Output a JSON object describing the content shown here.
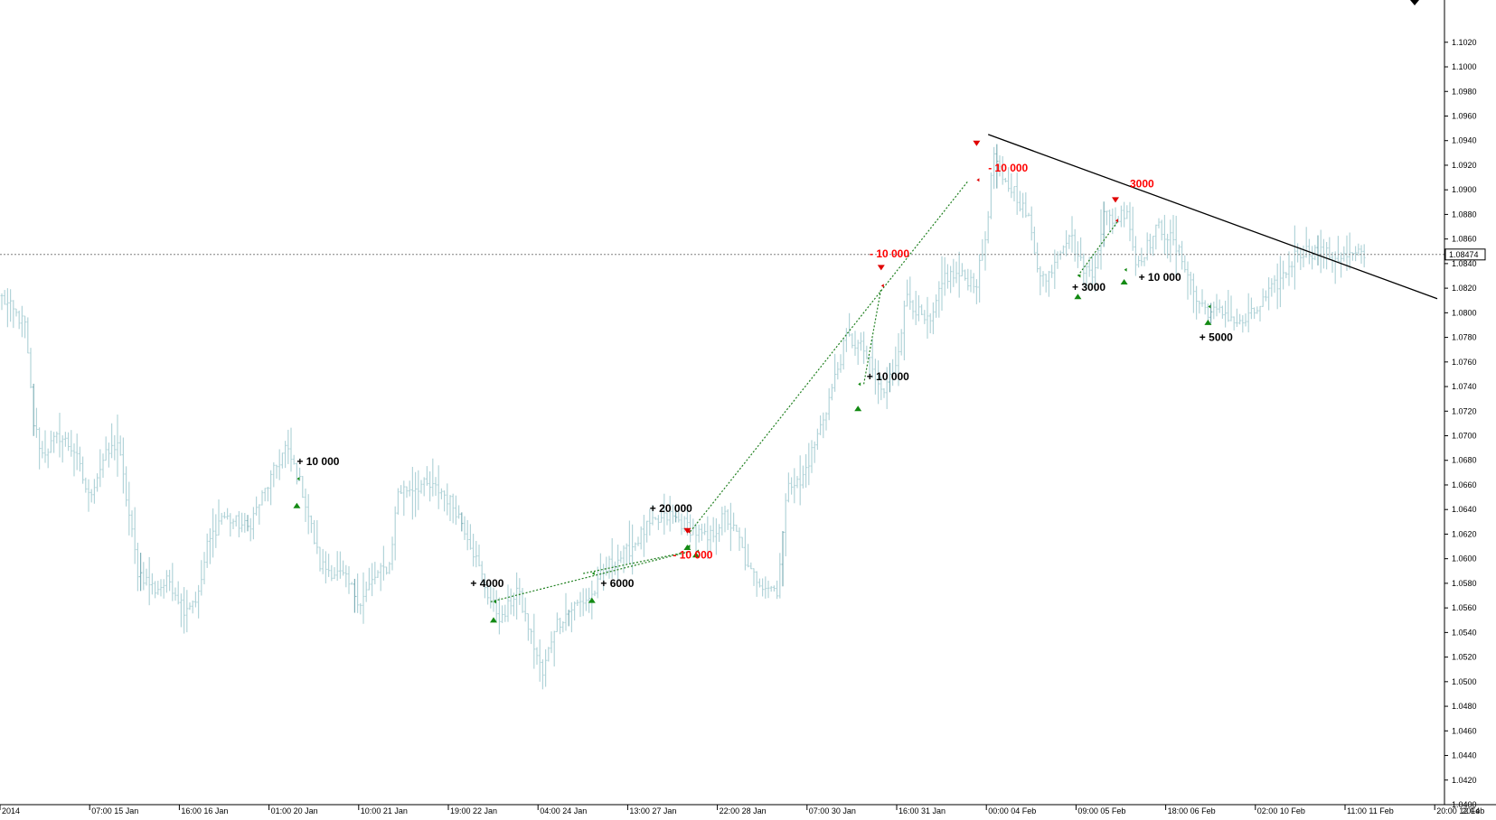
{
  "chart_data": {
    "type": "bar",
    "symbol_hint": "",
    "ylim": [
      1.04,
      1.1036
    ],
    "yticks": [
      "1.1020",
      "1.1000",
      "1.0980",
      "1.0960",
      "1.0940",
      "1.0920",
      "1.0900",
      "1.0880",
      "1.0860",
      "1.0840",
      "1.0820",
      "1.0800",
      "1.0780",
      "1.0760",
      "1.0740",
      "1.0720",
      "1.0700",
      "1.0680",
      "1.0660",
      "1.0640",
      "1.0620",
      "1.0600",
      "1.0580",
      "1.0560",
      "1.0540",
      "1.0520",
      "1.0500",
      "1.0480",
      "1.0460",
      "1.0440",
      "1.0420",
      "1.0400"
    ],
    "xticks": [
      {
        "label": "2014",
        "bar": 0
      },
      {
        "label": "07:00 15 Jan",
        "bar": 31
      },
      {
        "label": "16:00 16 Jan",
        "bar": 62
      },
      {
        "label": "01:00 20 Jan",
        "bar": 93
      },
      {
        "label": "10:00 21 Jan",
        "bar": 124
      },
      {
        "label": "19:00 22 Jan",
        "bar": 155
      },
      {
        "label": "04:00 24 Jan",
        "bar": 186
      },
      {
        "label": "13:00 27 Jan",
        "bar": 217
      },
      {
        "label": "22:00 28 Jan",
        "bar": 248
      },
      {
        "label": "07:00 30 Jan",
        "bar": 279
      },
      {
        "label": "16:00 31 Jan",
        "bar": 310
      },
      {
        "label": "00:00 04 Feb",
        "bar": 341
      },
      {
        "label": "09:00 05 Feb",
        "bar": 372
      },
      {
        "label": "18:00 06 Feb",
        "bar": 403
      },
      {
        "label": "02:00 10 Feb",
        "bar": 434
      },
      {
        "label": "11:00 11 Feb",
        "bar": 465
      },
      {
        "label": "20:00 12 Feb",
        "bar": 496
      }
    ],
    "xtick_overlap_label": "2014",
    "bar_count": 472,
    "close_anchors": [
      [
        0,
        1.0812
      ],
      [
        8,
        1.079
      ],
      [
        11,
        1.071
      ],
      [
        14,
        1.0685
      ],
      [
        20,
        1.07
      ],
      [
        25,
        1.0688
      ],
      [
        30,
        1.065
      ],
      [
        35,
        1.068
      ],
      [
        40,
        1.0695
      ],
      [
        47,
        1.059
      ],
      [
        53,
        1.0575
      ],
      [
        58,
        1.0582
      ],
      [
        63,
        1.056
      ],
      [
        68,
        1.057
      ],
      [
        71,
        1.061
      ],
      [
        76,
        1.0635
      ],
      [
        85,
        1.0625
      ],
      [
        90,
        1.065
      ],
      [
        98,
        1.069
      ],
      [
        101,
        1.0675
      ],
      [
        104,
        1.0655
      ],
      [
        110,
        1.0595
      ],
      [
        118,
        1.0585
      ],
      [
        124,
        1.0565
      ],
      [
        129,
        1.0585
      ],
      [
        134,
        1.0595
      ],
      [
        137,
        1.0655
      ],
      [
        145,
        1.066
      ],
      [
        152,
        1.0655
      ],
      [
        157,
        1.064
      ],
      [
        161,
        1.062
      ],
      [
        166,
        1.0585
      ],
      [
        169,
        1.0565
      ],
      [
        173,
        1.055
      ],
      [
        178,
        1.0575
      ],
      [
        182,
        1.0545
      ],
      [
        187,
        1.0505
      ],
      [
        191,
        1.0545
      ],
      [
        197,
        1.056
      ],
      [
        204,
        1.057
      ],
      [
        210,
        1.0595
      ],
      [
        216,
        1.0605
      ],
      [
        223,
        1.0625
      ],
      [
        231,
        1.0635
      ],
      [
        238,
        1.0625
      ],
      [
        244,
        1.0615
      ],
      [
        250,
        1.0635
      ],
      [
        255,
        1.0615
      ],
      [
        258,
        1.059
      ],
      [
        263,
        1.058
      ],
      [
        268,
        1.0575
      ],
      [
        272,
        1.0665
      ],
      [
        276,
        1.066
      ],
      [
        282,
        1.07
      ],
      [
        286,
        1.073
      ],
      [
        292,
        1.078
      ],
      [
        298,
        1.077
      ],
      [
        303,
        1.074
      ],
      [
        305,
        1.0735
      ],
      [
        309,
        1.076
      ],
      [
        313,
        1.0815
      ],
      [
        318,
        1.0795
      ],
      [
        321,
        1.079
      ],
      [
        326,
        1.083
      ],
      [
        331,
        1.083
      ],
      [
        337,
        1.0825
      ],
      [
        340,
        1.086
      ],
      [
        343,
        1.093
      ],
      [
        346,
        1.0905
      ],
      [
        350,
        1.09
      ],
      [
        355,
        1.0875
      ],
      [
        358,
        1.084
      ],
      [
        361,
        1.0825
      ],
      [
        365,
        1.085
      ],
      [
        369,
        1.0865
      ],
      [
        373,
        1.084
      ],
      [
        377,
        1.083
      ],
      [
        381,
        1.088
      ],
      [
        385,
        1.0875
      ],
      [
        389,
        1.0885
      ],
      [
        392,
        1.084
      ],
      [
        395,
        1.085
      ],
      [
        400,
        1.087
      ],
      [
        404,
        1.086
      ],
      [
        409,
        1.084
      ],
      [
        413,
        1.081
      ],
      [
        418,
        1.08
      ],
      [
        423,
        1.08
      ],
      [
        428,
        1.079
      ],
      [
        433,
        1.08
      ],
      [
        438,
        1.0815
      ],
      [
        443,
        1.083
      ],
      [
        448,
        1.085
      ],
      [
        454,
        1.085
      ],
      [
        461,
        1.0845
      ],
      [
        471,
        1.0847
      ]
    ],
    "current_price": "1.08474",
    "trendline": [
      [
        341,
        1.0945
      ],
      [
        490,
        1.081
      ]
    ],
    "trade_connections": [
      {
        "from": [
          169,
          1.0565
        ],
        "to": [
          238,
          1.0606
        ]
      },
      {
        "from": [
          201,
          1.0588
        ],
        "to": [
          238,
          1.0606
        ]
      },
      {
        "from": [
          238,
          1.0622
        ],
        "to": [
          334,
          1.0907
        ]
      },
      {
        "from": [
          298,
          1.0742
        ],
        "to": [
          304,
          1.082
        ]
      },
      {
        "from": [
          372,
          1.083
        ],
        "to": [
          386,
          1.0875
        ]
      }
    ],
    "trade_markers": [
      {
        "bar": 102,
        "price": 1.0665,
        "dir": "buy",
        "tick_price": 1.0644
      },
      {
        "bar": 170,
        "price": 1.0565,
        "dir": "buy",
        "tick_price": 1.0551
      },
      {
        "bar": 204,
        "price": 1.0588,
        "dir": "buy",
        "tick_price": 1.0567
      },
      {
        "bar": 237,
        "price": 1.061,
        "dir": "buy",
        "tick_price": 1.061
      },
      {
        "bar": 240,
        "price": 1.0606,
        "dir": "buy",
        "tick_price": 1.0604
      },
      {
        "bar": 237,
        "price": 1.0622,
        "dir": "sell",
        "tick_price": 1.0622
      },
      {
        "bar": 296,
        "price": 1.0742,
        "dir": "buy",
        "tick_price": 1.0723
      },
      {
        "bar": 304,
        "price": 1.0822,
        "dir": "sell",
        "tick_price": 1.0836
      },
      {
        "bar": 337,
        "price": 1.0908,
        "dir": "sell",
        "tick_price": 1.0937
      },
      {
        "bar": 372,
        "price": 1.083,
        "dir": "buy",
        "tick_price": 1.0814
      },
      {
        "bar": 385,
        "price": 1.0875,
        "dir": "sell",
        "tick_price": 1.0891
      },
      {
        "bar": 388,
        "price": 1.0835,
        "dir": "buy",
        "tick_price": 1.0826
      },
      {
        "bar": 417,
        "price": 1.0805,
        "dir": "buy",
        "tick_price": 1.0793
      }
    ],
    "annotations": [
      {
        "text": "+ 10 000",
        "bar": 102,
        "price": 1.0676,
        "color": "#000000"
      },
      {
        "text": "+ 4000",
        "bar": 162,
        "price": 1.0577,
        "color": "#000000"
      },
      {
        "text": "+ 6000",
        "bar": 207,
        "price": 1.0577,
        "color": "#000000"
      },
      {
        "text": "+ 20 000",
        "bar": 224,
        "price": 1.0638,
        "color": "#000000"
      },
      {
        "text": "- 10 000",
        "bar": 232,
        "price": 1.06,
        "color": "#ff0000"
      },
      {
        "text": "- 10 000",
        "bar": 300,
        "price": 1.0845,
        "color": "#ff0000"
      },
      {
        "text": "+ 10 000",
        "bar": 299,
        "price": 1.0745,
        "color": "#000000"
      },
      {
        "text": "- 10 000",
        "bar": 341,
        "price": 1.0915,
        "color": "#ff0000"
      },
      {
        "text": "3000",
        "bar": 390,
        "price": 1.0902,
        "color": "#ff0000"
      },
      {
        "text": "+ 3000",
        "bar": 370,
        "price": 1.0818,
        "color": "#000000"
      },
      {
        "text": "+ 10 000",
        "bar": 393,
        "price": 1.0826,
        "color": "#000000"
      },
      {
        "text": "+ 5000",
        "bar": 414,
        "price": 1.0777,
        "color": "#000000"
      }
    ],
    "colors": {
      "bars": "#b2d4d9",
      "bars_dark": "#7fb0b8",
      "trendline": "#000000",
      "connection": "#208020",
      "buy_marker": "#138a13",
      "sell_marker": "#e00000",
      "price_line": "#808080",
      "axis": "#000000"
    },
    "grid": false
  }
}
